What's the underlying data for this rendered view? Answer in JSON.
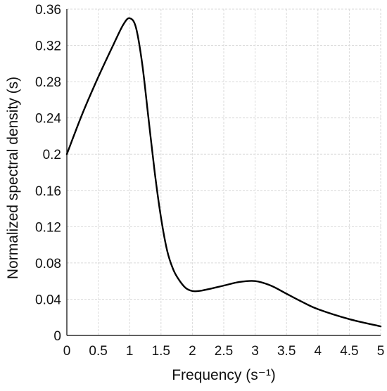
{
  "chart_data": {
    "type": "line",
    "title": "",
    "xlabel": "Frequency (s⁻¹)",
    "ylabel": "Normalized spectral density (s)",
    "xlim": [
      0,
      5
    ],
    "ylim": [
      0,
      0.36
    ],
    "grid": true,
    "x_ticks": [
      {
        "value": 0,
        "label": "0"
      },
      {
        "value": 0.5,
        "label": "0.5"
      },
      {
        "value": 1,
        "label": "1"
      },
      {
        "value": 1.5,
        "label": "1.5"
      },
      {
        "value": 2,
        "label": "2"
      },
      {
        "value": 2.5,
        "label": "2.5"
      },
      {
        "value": 3,
        "label": "3"
      },
      {
        "value": 3.5,
        "label": "3.5"
      },
      {
        "value": 4,
        "label": "4"
      },
      {
        "value": 4.5,
        "label": "4.5"
      },
      {
        "value": 5,
        "label": "5"
      }
    ],
    "y_ticks": [
      {
        "value": 0,
        "label": "0"
      },
      {
        "value": 0.04,
        "label": "0.04"
      },
      {
        "value": 0.08,
        "label": "0.08"
      },
      {
        "value": 0.12,
        "label": "0.12"
      },
      {
        "value": 0.16,
        "label": "0.16"
      },
      {
        "value": 0.2,
        "label": "0.2"
      },
      {
        "value": 0.24,
        "label": "0.24"
      },
      {
        "value": 0.28,
        "label": "0.28"
      },
      {
        "value": 0.32,
        "label": "0.32"
      },
      {
        "value": 0.36,
        "label": "0.36"
      }
    ],
    "series": [
      {
        "x": [
          0,
          0.25,
          0.5,
          0.75,
          0.9,
          1.0,
          1.1,
          1.2,
          1.3,
          1.4,
          1.5,
          1.6,
          1.7,
          1.8,
          1.9,
          2.0,
          2.1,
          2.25,
          2.5,
          2.75,
          3.0,
          3.25,
          3.5,
          3.75,
          4.0,
          4.5,
          5.0
        ],
        "values": [
          0.2,
          0.245,
          0.285,
          0.322,
          0.343,
          0.35,
          0.34,
          0.3,
          0.24,
          0.18,
          0.13,
          0.093,
          0.072,
          0.06,
          0.052,
          0.049,
          0.049,
          0.051,
          0.055,
          0.059,
          0.06,
          0.055,
          0.046,
          0.037,
          0.029,
          0.018,
          0.01
        ]
      }
    ]
  }
}
